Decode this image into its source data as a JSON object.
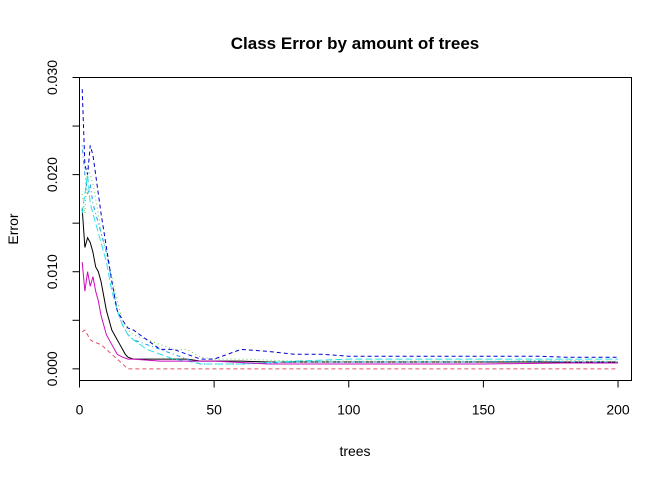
{
  "chart_data": {
    "type": "line",
    "title": "Class Error by amount of trees",
    "xlabel": "trees",
    "ylabel": "Error",
    "xlim": [
      0,
      205
    ],
    "ylim": [
      -0.0012,
      0.03
    ],
    "xticks": [
      0,
      50,
      100,
      150,
      200
    ],
    "yticks": [
      0.0,
      0.01,
      0.02,
      0.03
    ],
    "ytick_labels": [
      "0.000",
      "0.010",
      "0.020",
      "0.030"
    ],
    "grid": false,
    "legend": "none",
    "series": [
      {
        "color": "#000000",
        "dash": "solid",
        "points": [
          [
            1,
            0.0165
          ],
          [
            2,
            0.0125
          ],
          [
            3,
            0.0135
          ],
          [
            4,
            0.013
          ],
          [
            5,
            0.012
          ],
          [
            6,
            0.0105
          ],
          [
            7,
            0.01
          ],
          [
            8,
            0.009
          ],
          [
            9,
            0.0075
          ],
          [
            10,
            0.006
          ],
          [
            11,
            0.005
          ],
          [
            12,
            0.004
          ],
          [
            13,
            0.0035
          ],
          [
            14,
            0.003
          ],
          [
            15,
            0.0025
          ],
          [
            16,
            0.002
          ],
          [
            17,
            0.0015
          ],
          [
            18,
            0.0012
          ],
          [
            20,
            0.001
          ],
          [
            25,
            0.001
          ],
          [
            30,
            0.001
          ],
          [
            35,
            0.001
          ],
          [
            40,
            0.001
          ],
          [
            45,
            0.0008
          ],
          [
            50,
            0.0008
          ],
          [
            60,
            0.0008
          ],
          [
            70,
            0.0007
          ],
          [
            80,
            0.0007
          ],
          [
            90,
            0.0007
          ],
          [
            100,
            0.0007
          ],
          [
            120,
            0.0007
          ],
          [
            140,
            0.0007
          ],
          [
            160,
            0.0007
          ],
          [
            180,
            0.0007
          ],
          [
            200,
            0.0007
          ]
        ]
      },
      {
        "color": "#DF536B",
        "dash": "dashed",
        "points": [
          [
            1,
            0.0038
          ],
          [
            2,
            0.004
          ],
          [
            3,
            0.0035
          ],
          [
            4,
            0.003
          ],
          [
            5,
            0.0028
          ],
          [
            6,
            0.0027
          ],
          [
            8,
            0.0025
          ],
          [
            10,
            0.002
          ],
          [
            12,
            0.0015
          ],
          [
            14,
            0.001
          ],
          [
            16,
            0.0005
          ],
          [
            18,
            0.0
          ],
          [
            30,
            0.0
          ],
          [
            50,
            0.0
          ],
          [
            100,
            0.0
          ],
          [
            150,
            0.0
          ],
          [
            200,
            0.0
          ]
        ]
      },
      {
        "color": "#61D04F",
        "dash": "dotted",
        "points": [
          [
            1,
            0.018
          ],
          [
            2,
            0.016
          ],
          [
            3,
            0.021
          ],
          [
            4,
            0.02
          ],
          [
            5,
            0.019
          ],
          [
            6,
            0.0175
          ],
          [
            7,
            0.016
          ],
          [
            8,
            0.014
          ],
          [
            10,
            0.012
          ],
          [
            12,
            0.0095
          ],
          [
            14,
            0.007
          ],
          [
            16,
            0.005
          ],
          [
            18,
            0.004
          ],
          [
            20,
            0.0035
          ],
          [
            25,
            0.003
          ],
          [
            30,
            0.0025
          ],
          [
            35,
            0.002
          ],
          [
            40,
            0.002
          ],
          [
            45,
            0.0012
          ],
          [
            50,
            0.001
          ],
          [
            60,
            0.001
          ],
          [
            80,
            0.0008
          ],
          [
            100,
            0.0008
          ],
          [
            130,
            0.0008
          ],
          [
            160,
            0.0008
          ],
          [
            180,
            0.0009
          ],
          [
            190,
            0.0008
          ],
          [
            200,
            0.0008
          ]
        ]
      },
      {
        "color": "#2297E6",
        "dash": "dotdash",
        "points": [
          [
            1,
            0.023
          ],
          [
            2,
            0.02
          ],
          [
            3,
            0.018
          ],
          [
            4,
            0.019
          ],
          [
            5,
            0.017
          ],
          [
            6,
            0.016
          ],
          [
            7,
            0.015
          ],
          [
            8,
            0.014
          ],
          [
            10,
            0.012
          ],
          [
            12,
            0.009
          ],
          [
            14,
            0.006
          ],
          [
            16,
            0.0045
          ],
          [
            18,
            0.0035
          ],
          [
            20,
            0.003
          ],
          [
            25,
            0.0025
          ],
          [
            30,
            0.002
          ],
          [
            35,
            0.0015
          ],
          [
            40,
            0.001
          ],
          [
            45,
            0.0005
          ],
          [
            50,
            0.0005
          ],
          [
            60,
            0.0005
          ],
          [
            80,
            0.0007
          ],
          [
            100,
            0.0007
          ],
          [
            140,
            0.0007
          ],
          [
            170,
            0.0008
          ],
          [
            185,
            0.0007
          ],
          [
            200,
            0.0007
          ]
        ]
      },
      {
        "color": "#28E2E5",
        "dash": "longdash",
        "points": [
          [
            1,
            0.016
          ],
          [
            2,
            0.018
          ],
          [
            3,
            0.02
          ],
          [
            4,
            0.017
          ],
          [
            5,
            0.016
          ],
          [
            6,
            0.015
          ],
          [
            8,
            0.013
          ],
          [
            10,
            0.011
          ],
          [
            12,
            0.008
          ],
          [
            14,
            0.006
          ],
          [
            16,
            0.0045
          ],
          [
            18,
            0.0035
          ],
          [
            20,
            0.003
          ],
          [
            25,
            0.002
          ],
          [
            30,
            0.0015
          ],
          [
            35,
            0.001
          ],
          [
            40,
            0.0008
          ],
          [
            45,
            0.0005
          ],
          [
            60,
            0.0005
          ],
          [
            80,
            0.0008
          ],
          [
            100,
            0.001
          ],
          [
            140,
            0.001
          ],
          [
            180,
            0.001
          ],
          [
            200,
            0.001
          ]
        ]
      },
      {
        "color": "#CD0BBC",
        "dash": "solid",
        "points": [
          [
            1,
            0.011
          ],
          [
            2,
            0.008
          ],
          [
            3,
            0.01
          ],
          [
            4,
            0.0085
          ],
          [
            5,
            0.0095
          ],
          [
            6,
            0.008
          ],
          [
            7,
            0.007
          ],
          [
            8,
            0.0055
          ],
          [
            10,
            0.0035
          ],
          [
            12,
            0.0025
          ],
          [
            14,
            0.0015
          ],
          [
            16,
            0.0012
          ],
          [
            18,
            0.001
          ],
          [
            20,
            0.001
          ],
          [
            30,
            0.0008
          ],
          [
            40,
            0.0008
          ],
          [
            50,
            0.0008
          ],
          [
            70,
            0.0005
          ],
          [
            90,
            0.0005
          ],
          [
            110,
            0.0005
          ],
          [
            150,
            0.0005
          ],
          [
            180,
            0.0006
          ],
          [
            195,
            0.0006
          ],
          [
            200,
            0.0006
          ]
        ]
      },
      {
        "color": "#0000CD",
        "dash": "dashed",
        "points": [
          [
            1,
            0.0288
          ],
          [
            2,
            0.021
          ],
          [
            3,
            0.02
          ],
          [
            4,
            0.023
          ],
          [
            5,
            0.022
          ],
          [
            6,
            0.02
          ],
          [
            7,
            0.018
          ],
          [
            8,
            0.016
          ],
          [
            10,
            0.0125
          ],
          [
            12,
            0.009
          ],
          [
            14,
            0.006
          ],
          [
            16,
            0.005
          ],
          [
            18,
            0.0042
          ],
          [
            20,
            0.004
          ],
          [
            25,
            0.003
          ],
          [
            30,
            0.002
          ],
          [
            35,
            0.002
          ],
          [
            40,
            0.0015
          ],
          [
            45,
            0.001
          ],
          [
            50,
            0.001
          ],
          [
            55,
            0.0015
          ],
          [
            60,
            0.002
          ],
          [
            70,
            0.0018
          ],
          [
            80,
            0.0015
          ],
          [
            90,
            0.0015
          ],
          [
            100,
            0.0013
          ],
          [
            120,
            0.0013
          ],
          [
            150,
            0.0013
          ],
          [
            170,
            0.0013
          ],
          [
            180,
            0.0012
          ],
          [
            190,
            0.0012
          ],
          [
            200,
            0.0012
          ]
        ]
      }
    ]
  }
}
